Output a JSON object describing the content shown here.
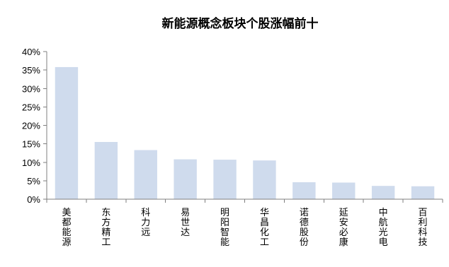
{
  "chart_data": {
    "type": "bar",
    "title": "新能源概念板块个股涨幅前十",
    "xlabel": "",
    "ylabel": "",
    "categories": [
      "美都能源",
      "东方精工",
      "科力远",
      "易世达",
      "明阳智能",
      "华昌化工",
      "诺德股份",
      "延安必康",
      "中航光电",
      "百利科技"
    ],
    "values": [
      35.8,
      15.5,
      13.3,
      10.8,
      10.7,
      10.5,
      4.6,
      4.5,
      3.6,
      3.5
    ],
    "value_unit": "%",
    "ylim": [
      0,
      40
    ],
    "yticks": [
      0,
      5,
      10,
      15,
      20,
      25,
      30,
      35,
      40
    ],
    "ytick_labels": [
      "0%",
      "5%",
      "10%",
      "15%",
      "20%",
      "25%",
      "30%",
      "35%",
      "40%"
    ],
    "grid": false,
    "legend": "none",
    "bar_color": "#cfdbed",
    "axis_color": "#7f7f7f",
    "label_orientation": "vertical"
  }
}
